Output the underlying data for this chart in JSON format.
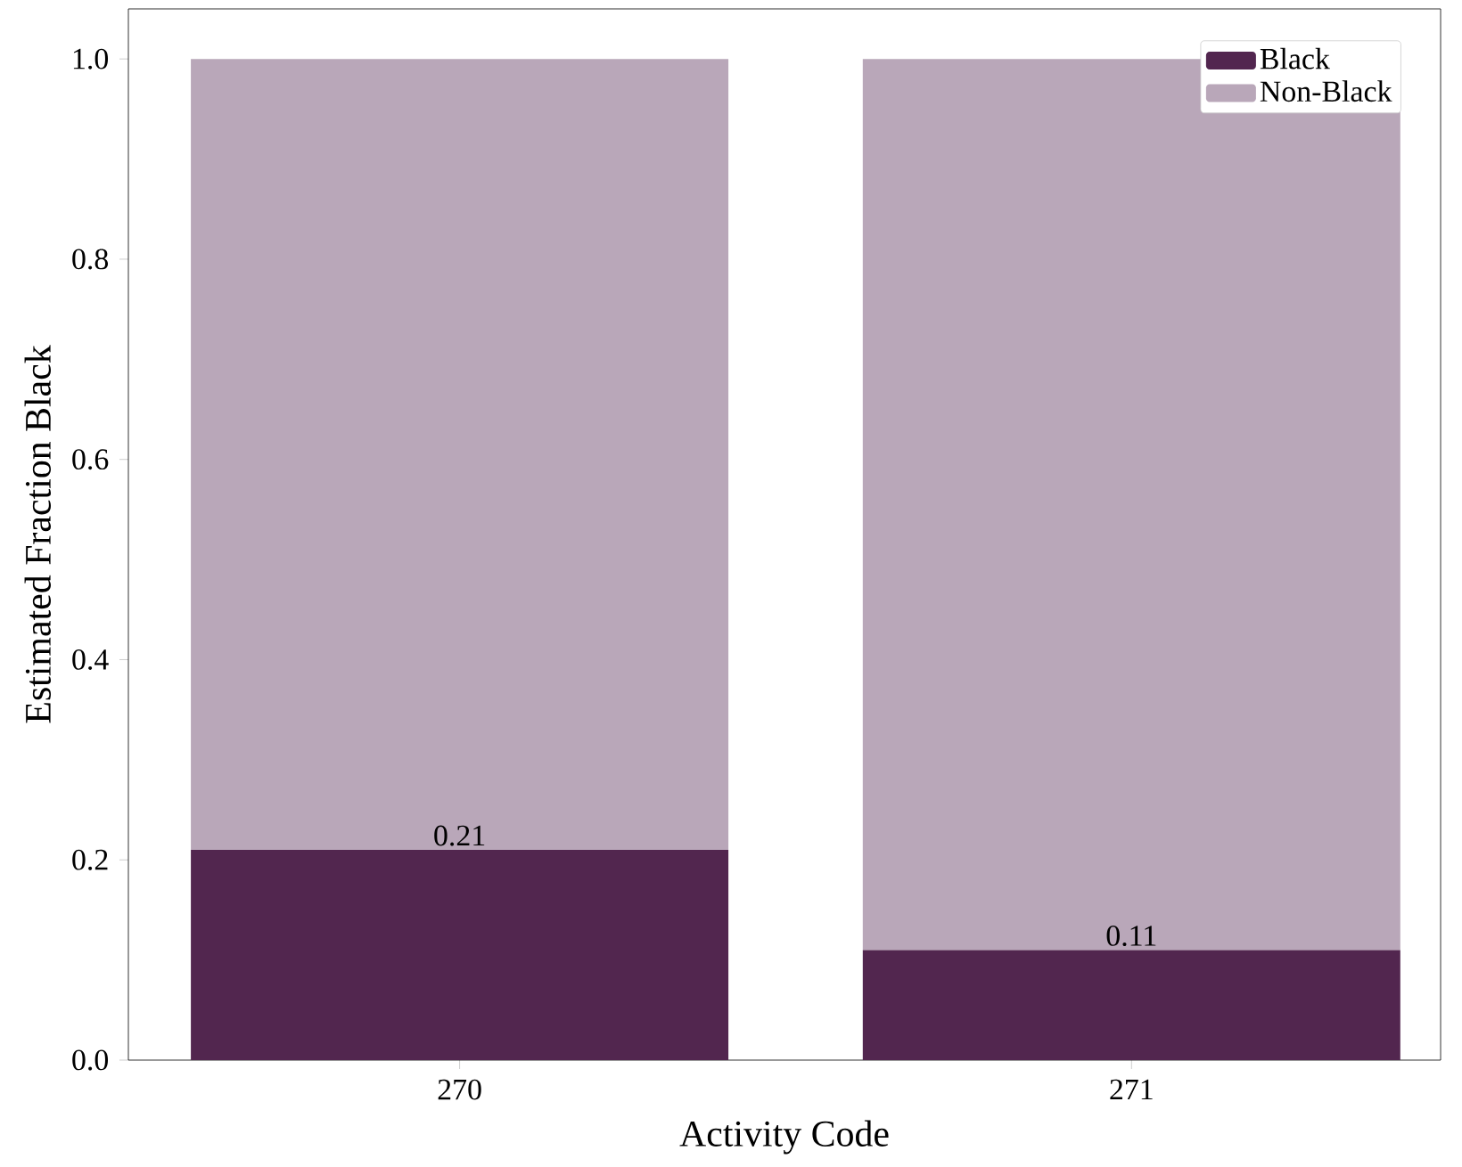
{
  "chart_data": {
    "type": "bar",
    "stacked": true,
    "xlabel": "Activity Code",
    "ylabel": "Estimated Fraction Black",
    "categories": [
      "270",
      "271"
    ],
    "series": [
      {
        "name": "Black",
        "color": "#52264f",
        "values": [
          0.21,
          0.11
        ],
        "value_labels": [
          "0.21",
          "0.11"
        ]
      },
      {
        "name": "Non-Black",
        "color": "#b9a7b9",
        "values": [
          0.79,
          0.89
        ]
      }
    ],
    "ylim": [
      0,
      1.05
    ],
    "yticks": [
      {
        "value": 0,
        "label": "0.0"
      },
      0.2,
      0.4,
      0.6,
      0.8,
      {
        "value": 1,
        "label": "1.0"
      }
    ],
    "legend": "top right",
    "grid": false
  }
}
